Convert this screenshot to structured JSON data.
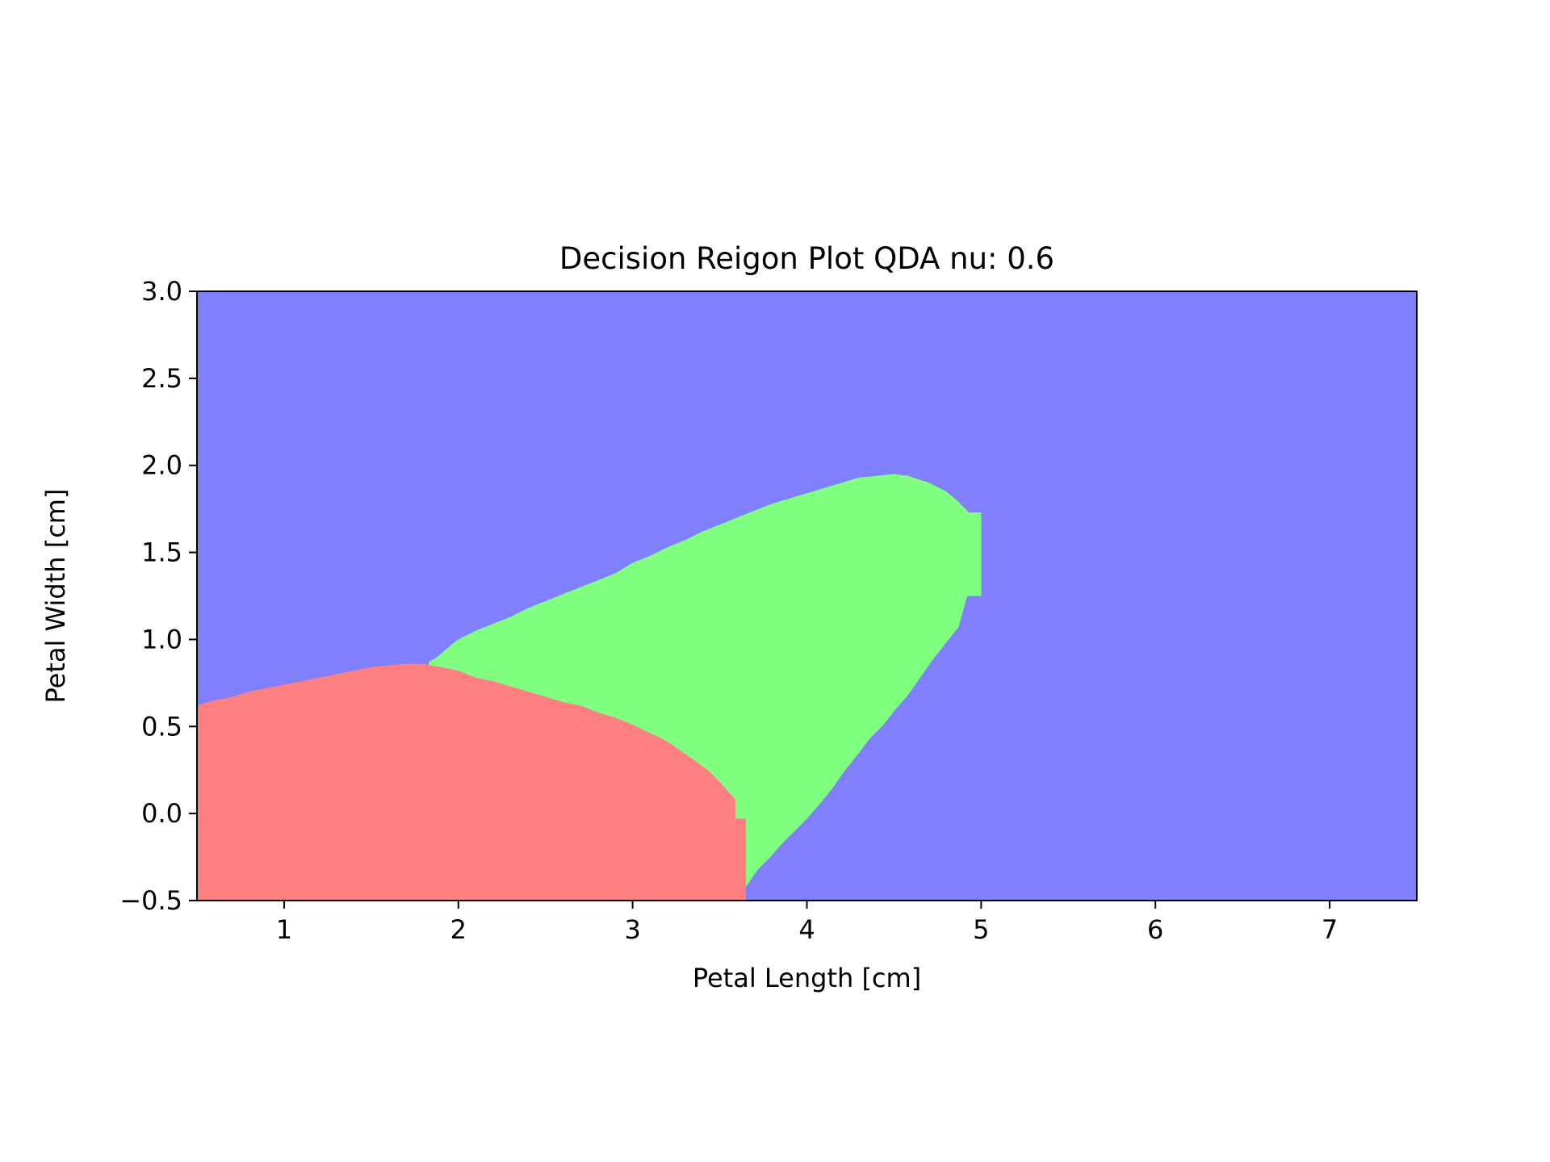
{
  "chart_data": {
    "type": "heatmap",
    "title": "Decision Reigon Plot QDA  nu: 0.6",
    "xlabel": "Petal Length [cm]",
    "ylabel": "Petal Width [cm]",
    "xlim": [
      0.5,
      7.5
    ],
    "ylim": [
      -0.5,
      3.0
    ],
    "xticks": [
      1,
      2,
      3,
      4,
      5,
      6,
      7
    ],
    "xtick_labels": [
      "1",
      "2",
      "3",
      "4",
      "5",
      "6",
      "7"
    ],
    "yticks": [
      -0.5,
      0.0,
      0.5,
      1.0,
      1.5,
      2.0,
      2.5,
      3.0
    ],
    "ytick_labels": [
      "−0.5",
      "0.0",
      "0.5",
      "1.0",
      "1.5",
      "2.0",
      "2.5",
      "3.0"
    ],
    "grid": false,
    "legend": "none",
    "class_colors": {
      "class_0": "#ff8080",
      "class_1": "#80ff80",
      "class_2": "#8080ff"
    },
    "regions": [
      {
        "class": "class_2",
        "description": "background",
        "polygon": [
          [
            0.5,
            -0.5
          ],
          [
            7.5,
            -0.5
          ],
          [
            7.5,
            3.0
          ],
          [
            0.5,
            3.0
          ]
        ]
      },
      {
        "class": "class_1",
        "polygon": [
          [
            1.83,
            0.87
          ],
          [
            1.88,
            0.9
          ],
          [
            1.96,
            0.97
          ],
          [
            2.0,
            1.0
          ],
          [
            2.1,
            1.05
          ],
          [
            2.2,
            1.09
          ],
          [
            2.3,
            1.13
          ],
          [
            2.4,
            1.18
          ],
          [
            2.5,
            1.22
          ],
          [
            2.6,
            1.26
          ],
          [
            2.7,
            1.3
          ],
          [
            2.8,
            1.34
          ],
          [
            2.9,
            1.38
          ],
          [
            3.0,
            1.44
          ],
          [
            3.1,
            1.48
          ],
          [
            3.2,
            1.53
          ],
          [
            3.3,
            1.57
          ],
          [
            3.4,
            1.62
          ],
          [
            3.5,
            1.66
          ],
          [
            3.6,
            1.7
          ],
          [
            3.7,
            1.74
          ],
          [
            3.8,
            1.78
          ],
          [
            3.9,
            1.81
          ],
          [
            4.0,
            1.84
          ],
          [
            4.1,
            1.87
          ],
          [
            4.2,
            1.9
          ],
          [
            4.3,
            1.93
          ],
          [
            4.4,
            1.94
          ],
          [
            4.5,
            1.95
          ],
          [
            4.58,
            1.94
          ],
          [
            4.7,
            1.9
          ],
          [
            4.8,
            1.85
          ],
          [
            4.86,
            1.8
          ],
          [
            4.93,
            1.73
          ],
          [
            5.0,
            1.73
          ],
          [
            5.0,
            1.25
          ],
          [
            4.92,
            1.25
          ],
          [
            4.87,
            1.07
          ],
          [
            4.79,
            0.97
          ],
          [
            4.72,
            0.88
          ],
          [
            4.65,
            0.78
          ],
          [
            4.58,
            0.68
          ],
          [
            4.51,
            0.6
          ],
          [
            4.44,
            0.51
          ],
          [
            4.36,
            0.43
          ],
          [
            4.3,
            0.35
          ],
          [
            4.22,
            0.25
          ],
          [
            4.15,
            0.15
          ],
          [
            4.07,
            0.05
          ],
          [
            4.0,
            -0.03
          ],
          [
            3.93,
            -0.1
          ],
          [
            3.86,
            -0.17
          ],
          [
            3.79,
            -0.25
          ],
          [
            3.72,
            -0.32
          ],
          [
            3.65,
            -0.42
          ],
          [
            3.65,
            -0.03
          ],
          [
            3.59,
            -0.03
          ],
          [
            3.59,
            0.08
          ],
          [
            3.5,
            0.18
          ],
          [
            3.43,
            0.25
          ],
          [
            3.36,
            0.3
          ],
          [
            3.29,
            0.35
          ],
          [
            3.22,
            0.4
          ],
          [
            3.15,
            0.44
          ],
          [
            3.08,
            0.47
          ],
          [
            3.0,
            0.51
          ],
          [
            2.9,
            0.55
          ],
          [
            2.8,
            0.58
          ],
          [
            2.7,
            0.62
          ],
          [
            2.6,
            0.64
          ],
          [
            2.5,
            0.67
          ],
          [
            2.4,
            0.7
          ],
          [
            2.3,
            0.73
          ],
          [
            2.2,
            0.76
          ],
          [
            2.1,
            0.78
          ],
          [
            2.0,
            0.82
          ],
          [
            1.9,
            0.84
          ],
          [
            1.83,
            0.85
          ]
        ]
      },
      {
        "class": "class_0",
        "polygon": [
          [
            0.5,
            -0.5
          ],
          [
            3.65,
            -0.5
          ],
          [
            3.65,
            -0.03
          ],
          [
            3.59,
            -0.03
          ],
          [
            3.59,
            0.08
          ],
          [
            3.5,
            0.18
          ],
          [
            3.43,
            0.25
          ],
          [
            3.36,
            0.3
          ],
          [
            3.29,
            0.35
          ],
          [
            3.22,
            0.4
          ],
          [
            3.15,
            0.44
          ],
          [
            3.08,
            0.47
          ],
          [
            3.0,
            0.51
          ],
          [
            2.9,
            0.55
          ],
          [
            2.8,
            0.58
          ],
          [
            2.7,
            0.62
          ],
          [
            2.6,
            0.64
          ],
          [
            2.5,
            0.67
          ],
          [
            2.4,
            0.7
          ],
          [
            2.3,
            0.73
          ],
          [
            2.2,
            0.76
          ],
          [
            2.1,
            0.78
          ],
          [
            2.0,
            0.82
          ],
          [
            1.9,
            0.84
          ],
          [
            1.8,
            0.86
          ],
          [
            1.7,
            0.86
          ],
          [
            1.6,
            0.85
          ],
          [
            1.5,
            0.84
          ],
          [
            1.4,
            0.82
          ],
          [
            1.3,
            0.8
          ],
          [
            1.2,
            0.78
          ],
          [
            1.1,
            0.76
          ],
          [
            1.0,
            0.74
          ],
          [
            0.9,
            0.72
          ],
          [
            0.8,
            0.7
          ],
          [
            0.7,
            0.67
          ],
          [
            0.6,
            0.65
          ],
          [
            0.53,
            0.63
          ],
          [
            0.5,
            0.62
          ]
        ]
      }
    ]
  }
}
